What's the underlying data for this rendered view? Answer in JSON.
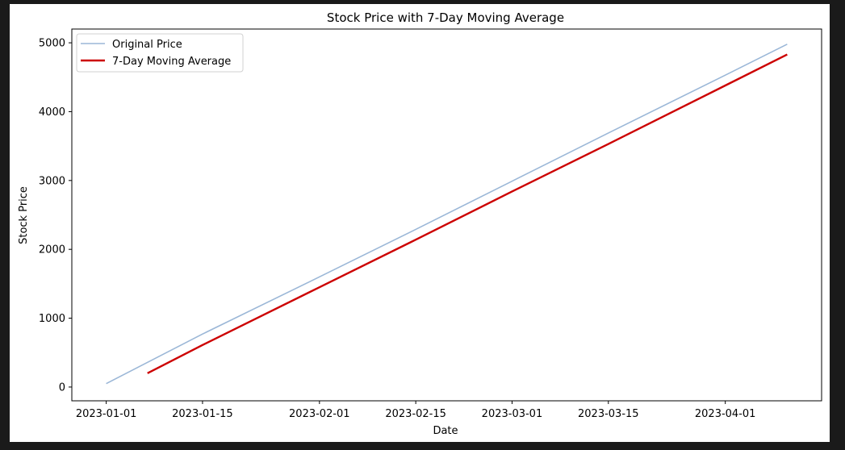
{
  "chart_data": {
    "type": "line",
    "title": "Stock Price with 7-Day Moving Average",
    "xlabel": "Date",
    "ylabel": "Stock Price",
    "xlim": [
      "2022-12-27",
      "2023-04-15"
    ],
    "ylim": [
      -200,
      5200
    ],
    "x_ticks": [
      "2023-01-01",
      "2023-01-15",
      "2023-02-01",
      "2023-02-15",
      "2023-03-01",
      "2023-03-15",
      "2023-04-01"
    ],
    "y_ticks": [
      0,
      1000,
      2000,
      3000,
      4000,
      5000
    ],
    "grid": false,
    "legend_position": "top-left",
    "series": [
      {
        "name": "Original Price",
        "color": "#9bb7d7",
        "x": [
          "2023-01-01",
          "2023-01-15",
          "2023-02-01",
          "2023-02-15",
          "2023-03-01",
          "2023-03-15",
          "2023-04-01",
          "2023-04-10"
        ],
        "values": [
          50,
          770,
          1600,
          2290,
          2990,
          3690,
          4530,
          4980
        ]
      },
      {
        "name": "7-Day Moving Average",
        "color": "#cc0000",
        "x": [
          "2023-01-07",
          "2023-01-15",
          "2023-02-01",
          "2023-02-15",
          "2023-03-01",
          "2023-03-15",
          "2023-04-01",
          "2023-04-10"
        ],
        "values": [
          200,
          610,
          1450,
          2140,
          2840,
          3530,
          4380,
          4830
        ]
      }
    ]
  }
}
